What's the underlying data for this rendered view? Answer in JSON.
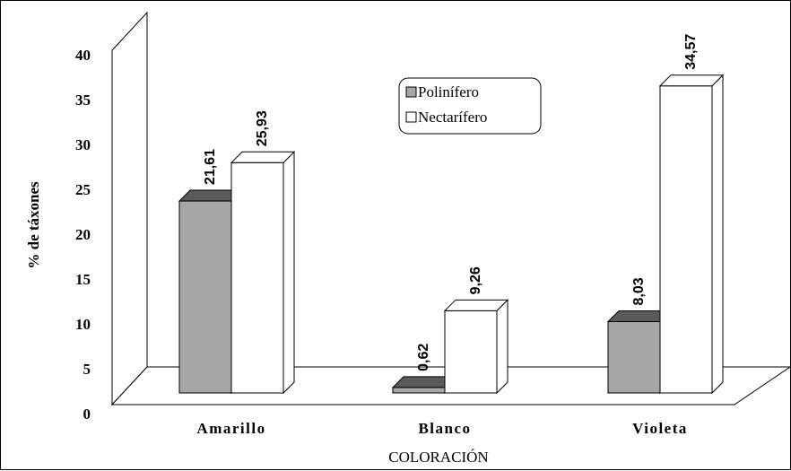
{
  "chart_data": {
    "type": "bar",
    "categories": [
      "Amarillo",
      "Blanco",
      "Violeta"
    ],
    "series": [
      {
        "name": "Polinífero",
        "values": [
          21.61,
          0.62,
          8.03
        ],
        "labels": [
          "21,61",
          "0,62",
          "8,03"
        ],
        "color": "#a6a6a6",
        "top_color": "#5a5a5a"
      },
      {
        "name": "Nectarífero",
        "values": [
          25.93,
          9.26,
          34.57
        ],
        "labels": [
          "25,93",
          "9,26",
          "34,57"
        ],
        "color": "#ffffff",
        "top_color": "#ffffff"
      }
    ],
    "xlabel": "COLORACIÓN",
    "ylabel": "% de táxones",
    "ylim": [
      0,
      40
    ],
    "yticks": [
      "0",
      "5",
      "10",
      "15",
      "20",
      "25",
      "30",
      "35",
      "40"
    ],
    "style": "3d",
    "grid": false,
    "legend": "top-center"
  }
}
